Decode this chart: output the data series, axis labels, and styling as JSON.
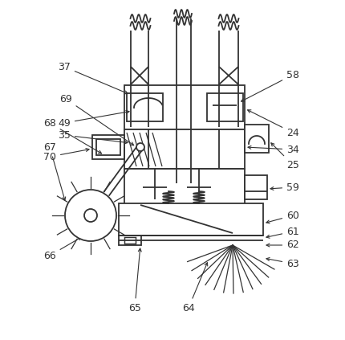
{
  "bg_color": "#ffffff",
  "line_color": "#333333",
  "lw": 1.3,
  "fig_width": 4.3,
  "fig_height": 4.23,
  "font_size": 9
}
